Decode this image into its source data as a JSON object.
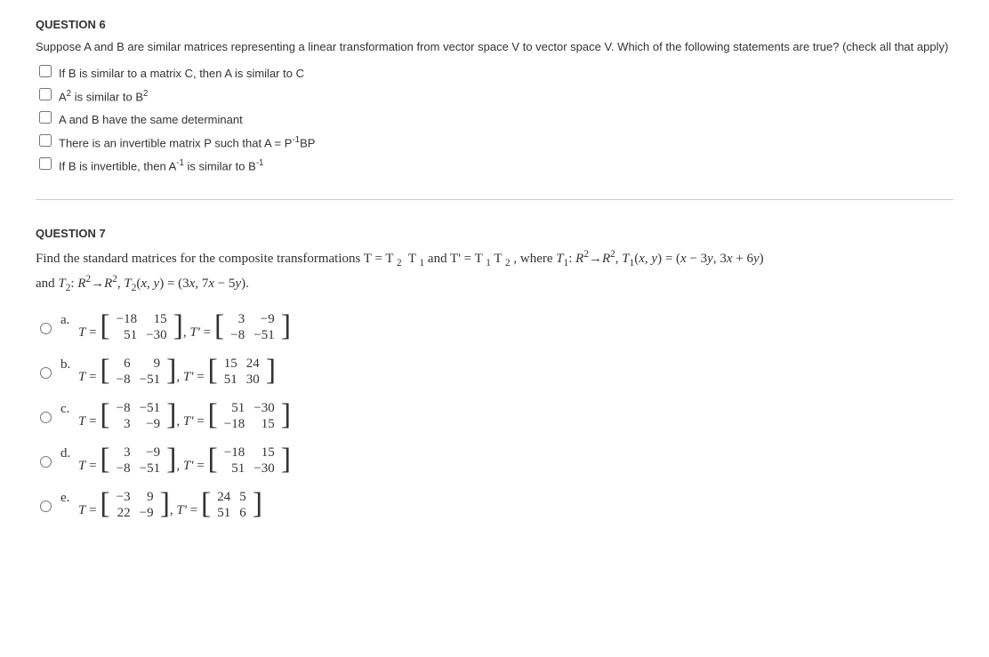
{
  "q6": {
    "title": "QUESTION 6",
    "prompt": "Suppose A and B are similar matrices representing a linear transformation from vector space V to vector space V.  Which of the following statements are true? (check all that apply)",
    "options": [
      {
        "html": "If B is similar to a matrix C, then A is similar to C"
      },
      {
        "html": "A<sup>2</sup> is similar to B<sup>2</sup>"
      },
      {
        "html": "A and B have the same determinant"
      },
      {
        "html": "There is an invertible matrix P such that A = P<sup>-1</sup>BP"
      },
      {
        "html": "If B is invertible, then A<sup>-1</sup> is similar to B<sup>-1</sup>"
      }
    ]
  },
  "q7": {
    "title": "QUESTION 7",
    "prompt_html": "Find the standard matrices for the composite transformations T = T <sub>2</sub>&nbsp; T <sub>1</sub> and T' = T <sub>1</sub> T <sub>2</sub> , where <i>T</i><sub>1</sub>: <i>R</i><sup>2</sup>&rarr;<i>R</i><sup>2</sup>, <i>T</i><sub>1</sub>(<i>x</i>, <i>y</i>) = (<i>x</i> &minus; 3<i>y</i>, 3<i>x</i> + 6<i>y</i>)",
    "prompt2_html": "and <i>T</i><sub>2</sub>: <i>R</i><sup>2</sup>&rarr;<i>R</i><sup>2</sup>, <i>T</i><sub>2</sub>(<i>x</i>, <i>y</i>) = (3<i>x</i>, 7<i>x</i> &minus; 5<i>y</i>).",
    "options": [
      {
        "letter": "a.",
        "T": [
          [
            "−18",
            "15"
          ],
          [
            "51",
            "−30"
          ]
        ],
        "Tp": [
          [
            "3",
            "−9"
          ],
          [
            "−8",
            "−51"
          ]
        ]
      },
      {
        "letter": "b.",
        "T": [
          [
            "6",
            "9"
          ],
          [
            "−8",
            "−51"
          ]
        ],
        "Tp": [
          [
            "15",
            "24"
          ],
          [
            "51",
            "30"
          ]
        ]
      },
      {
        "letter": "c.",
        "T": [
          [
            "−8",
            "−51"
          ],
          [
            "3",
            "−9"
          ]
        ],
        "Tp": [
          [
            "51",
            "−30"
          ],
          [
            "−18",
            "15"
          ]
        ]
      },
      {
        "letter": "d.",
        "T": [
          [
            "3",
            "−9"
          ],
          [
            "−8",
            "−51"
          ]
        ],
        "Tp": [
          [
            "−18",
            "15"
          ],
          [
            "51",
            "−30"
          ]
        ]
      },
      {
        "letter": "e.",
        "T": [
          [
            "−3",
            "9"
          ],
          [
            "22",
            "−9"
          ]
        ],
        "Tp": [
          [
            "24",
            "5"
          ],
          [
            "51",
            "6"
          ]
        ]
      }
    ]
  }
}
